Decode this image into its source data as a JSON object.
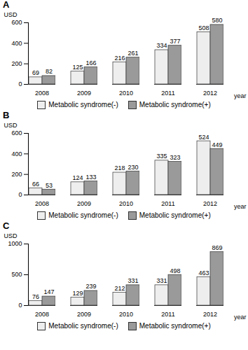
{
  "chart_data": [
    {
      "type": "bar",
      "title": "A",
      "y_label": "USD",
      "x_label": "year",
      "categories": [
        "2008",
        "2009",
        "2010",
        "2011",
        "2012"
      ],
      "series": [
        {
          "name": "Metabolic syndrome(-)",
          "color": "#eeeeee",
          "values": [
            69,
            125,
            216,
            334,
            508
          ]
        },
        {
          "name": "Metabolic syndrome(+)",
          "color": "#9a9a9a",
          "values": [
            82,
            166,
            261,
            377,
            580
          ]
        }
      ],
      "ylim": [
        0,
        600
      ],
      "yticks": [
        0,
        200,
        400,
        600
      ],
      "data_labels": true,
      "legend": "bottom"
    },
    {
      "type": "bar",
      "title": "B",
      "y_label": "USD",
      "x_label": "year",
      "categories": [
        "2008",
        "2009",
        "2010",
        "2011",
        "2012"
      ],
      "series": [
        {
          "name": "Metabolic syndrome(-)",
          "color": "#eeeeee",
          "values": [
            66,
            124,
            218,
            335,
            524
          ]
        },
        {
          "name": "Metabolic syndrome(+)",
          "color": "#9a9a9a",
          "values": [
            53,
            133,
            230,
            323,
            449
          ]
        }
      ],
      "ylim": [
        0,
        600
      ],
      "yticks": [
        0,
        200,
        400,
        600
      ],
      "data_labels": true,
      "legend": "bottom"
    },
    {
      "type": "bar",
      "title": "C",
      "y_label": "USD",
      "x_label": "year",
      "categories": [
        "2008",
        "2009",
        "2010",
        "2011",
        "2012"
      ],
      "series": [
        {
          "name": "Metabolic syndrome(-)",
          "color": "#eeeeee",
          "values": [
            76,
            129,
            212,
            331,
            463
          ]
        },
        {
          "name": "Metabolic syndrome(+)",
          "color": "#9a9a9a",
          "values": [
            147,
            239,
            331,
            498,
            869
          ]
        }
      ],
      "ylim": [
        0,
        1000
      ],
      "yticks": [
        0,
        500,
        1000
      ],
      "data_labels": true,
      "legend": "bottom"
    }
  ]
}
